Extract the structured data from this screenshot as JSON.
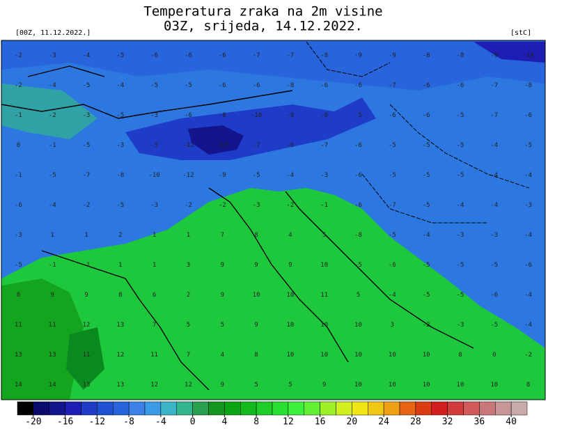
{
  "header": {
    "title_line1": "Temperatura zraka na 2m visine",
    "title_line2": "03Z, srijeda, 14.12.2022.",
    "run": "[00Z, 11.12.2022.]",
    "unit": "[stC]"
  },
  "grid": {
    "rows": [
      [
        -2,
        -3,
        -4,
        -5,
        -6,
        -6,
        -6,
        -7,
        -7,
        -8,
        -9,
        -9,
        -8,
        -8,
        -9,
        -10
      ],
      [
        -2,
        -4,
        -5,
        -4,
        -5,
        -5,
        -6,
        -6,
        -8,
        -6,
        -6,
        -7,
        -6,
        -6,
        -7,
        -8
      ],
      [
        -1,
        -2,
        -3,
        -5,
        -3,
        -6,
        -8,
        -10,
        -8,
        -6,
        -5,
        -6,
        -6,
        -5,
        -7,
        -6
      ],
      [
        0,
        -1,
        -5,
        -3,
        -5,
        -12,
        -10,
        -7,
        -6,
        -7,
        -6,
        -5,
        -5,
        -5,
        -4,
        -5
      ],
      [
        -1,
        -5,
        -7,
        -8,
        -10,
        -12,
        -9,
        -5,
        -4,
        -3,
        -6,
        -5,
        -5,
        -5,
        -4,
        -4
      ],
      [
        -6,
        -4,
        -2,
        -5,
        -3,
        -2,
        -2,
        -3,
        -2,
        -1,
        -6,
        -7,
        -5,
        -4,
        -4,
        -3
      ],
      [
        -3,
        1,
        1,
        2,
        1,
        1,
        7,
        8,
        4,
        5,
        -8,
        -5,
        -4,
        -3,
        -3,
        -4
      ],
      [
        -5,
        -1,
        -1,
        1,
        1,
        3,
        9,
        9,
        9,
        10,
        -5,
        -6,
        -5,
        -5,
        -5,
        -6
      ],
      [
        8,
        9,
        9,
        8,
        6,
        2,
        9,
        10,
        10,
        11,
        5,
        -4,
        -5,
        -5,
        -6,
        -4
      ],
      [
        11,
        11,
        12,
        13,
        7,
        5,
        5,
        9,
        10,
        10,
        10,
        3,
        -2,
        -3,
        -5,
        -4
      ],
      [
        13,
        13,
        11,
        12,
        11,
        7,
        4,
        8,
        10,
        10,
        10,
        10,
        10,
        8,
        0,
        -2
      ],
      [
        14,
        14,
        13,
        13,
        12,
        12,
        9,
        5,
        5,
        9,
        10,
        10,
        10,
        10,
        10,
        8
      ]
    ]
  },
  "colorbar": {
    "lim": [
      -22,
      42
    ],
    "ticks": [
      -20,
      -16,
      -12,
      -8,
      -4,
      0,
      4,
      8,
      12,
      16,
      20,
      24,
      28,
      32,
      36,
      40
    ],
    "colors": [
      "#000000",
      "#0a0a6e",
      "#14148c",
      "#1e1eb4",
      "#1e3cc8",
      "#1e50d2",
      "#2864dc",
      "#3c82e6",
      "#3c9be6",
      "#3cb4c8",
      "#32b48c",
      "#28a050",
      "#14961e",
      "#0aa514",
      "#14b91e",
      "#1ecd28",
      "#28e132",
      "#3cf03c",
      "#64f032",
      "#a0f028",
      "#d2f01e",
      "#f0e614",
      "#f0c814",
      "#f0a014",
      "#e66414",
      "#dc3c14",
      "#d21e1e",
      "#d23c3c",
      "#d25a5a",
      "#c87878",
      "#c89696",
      "#c8aaaa"
    ]
  }
}
